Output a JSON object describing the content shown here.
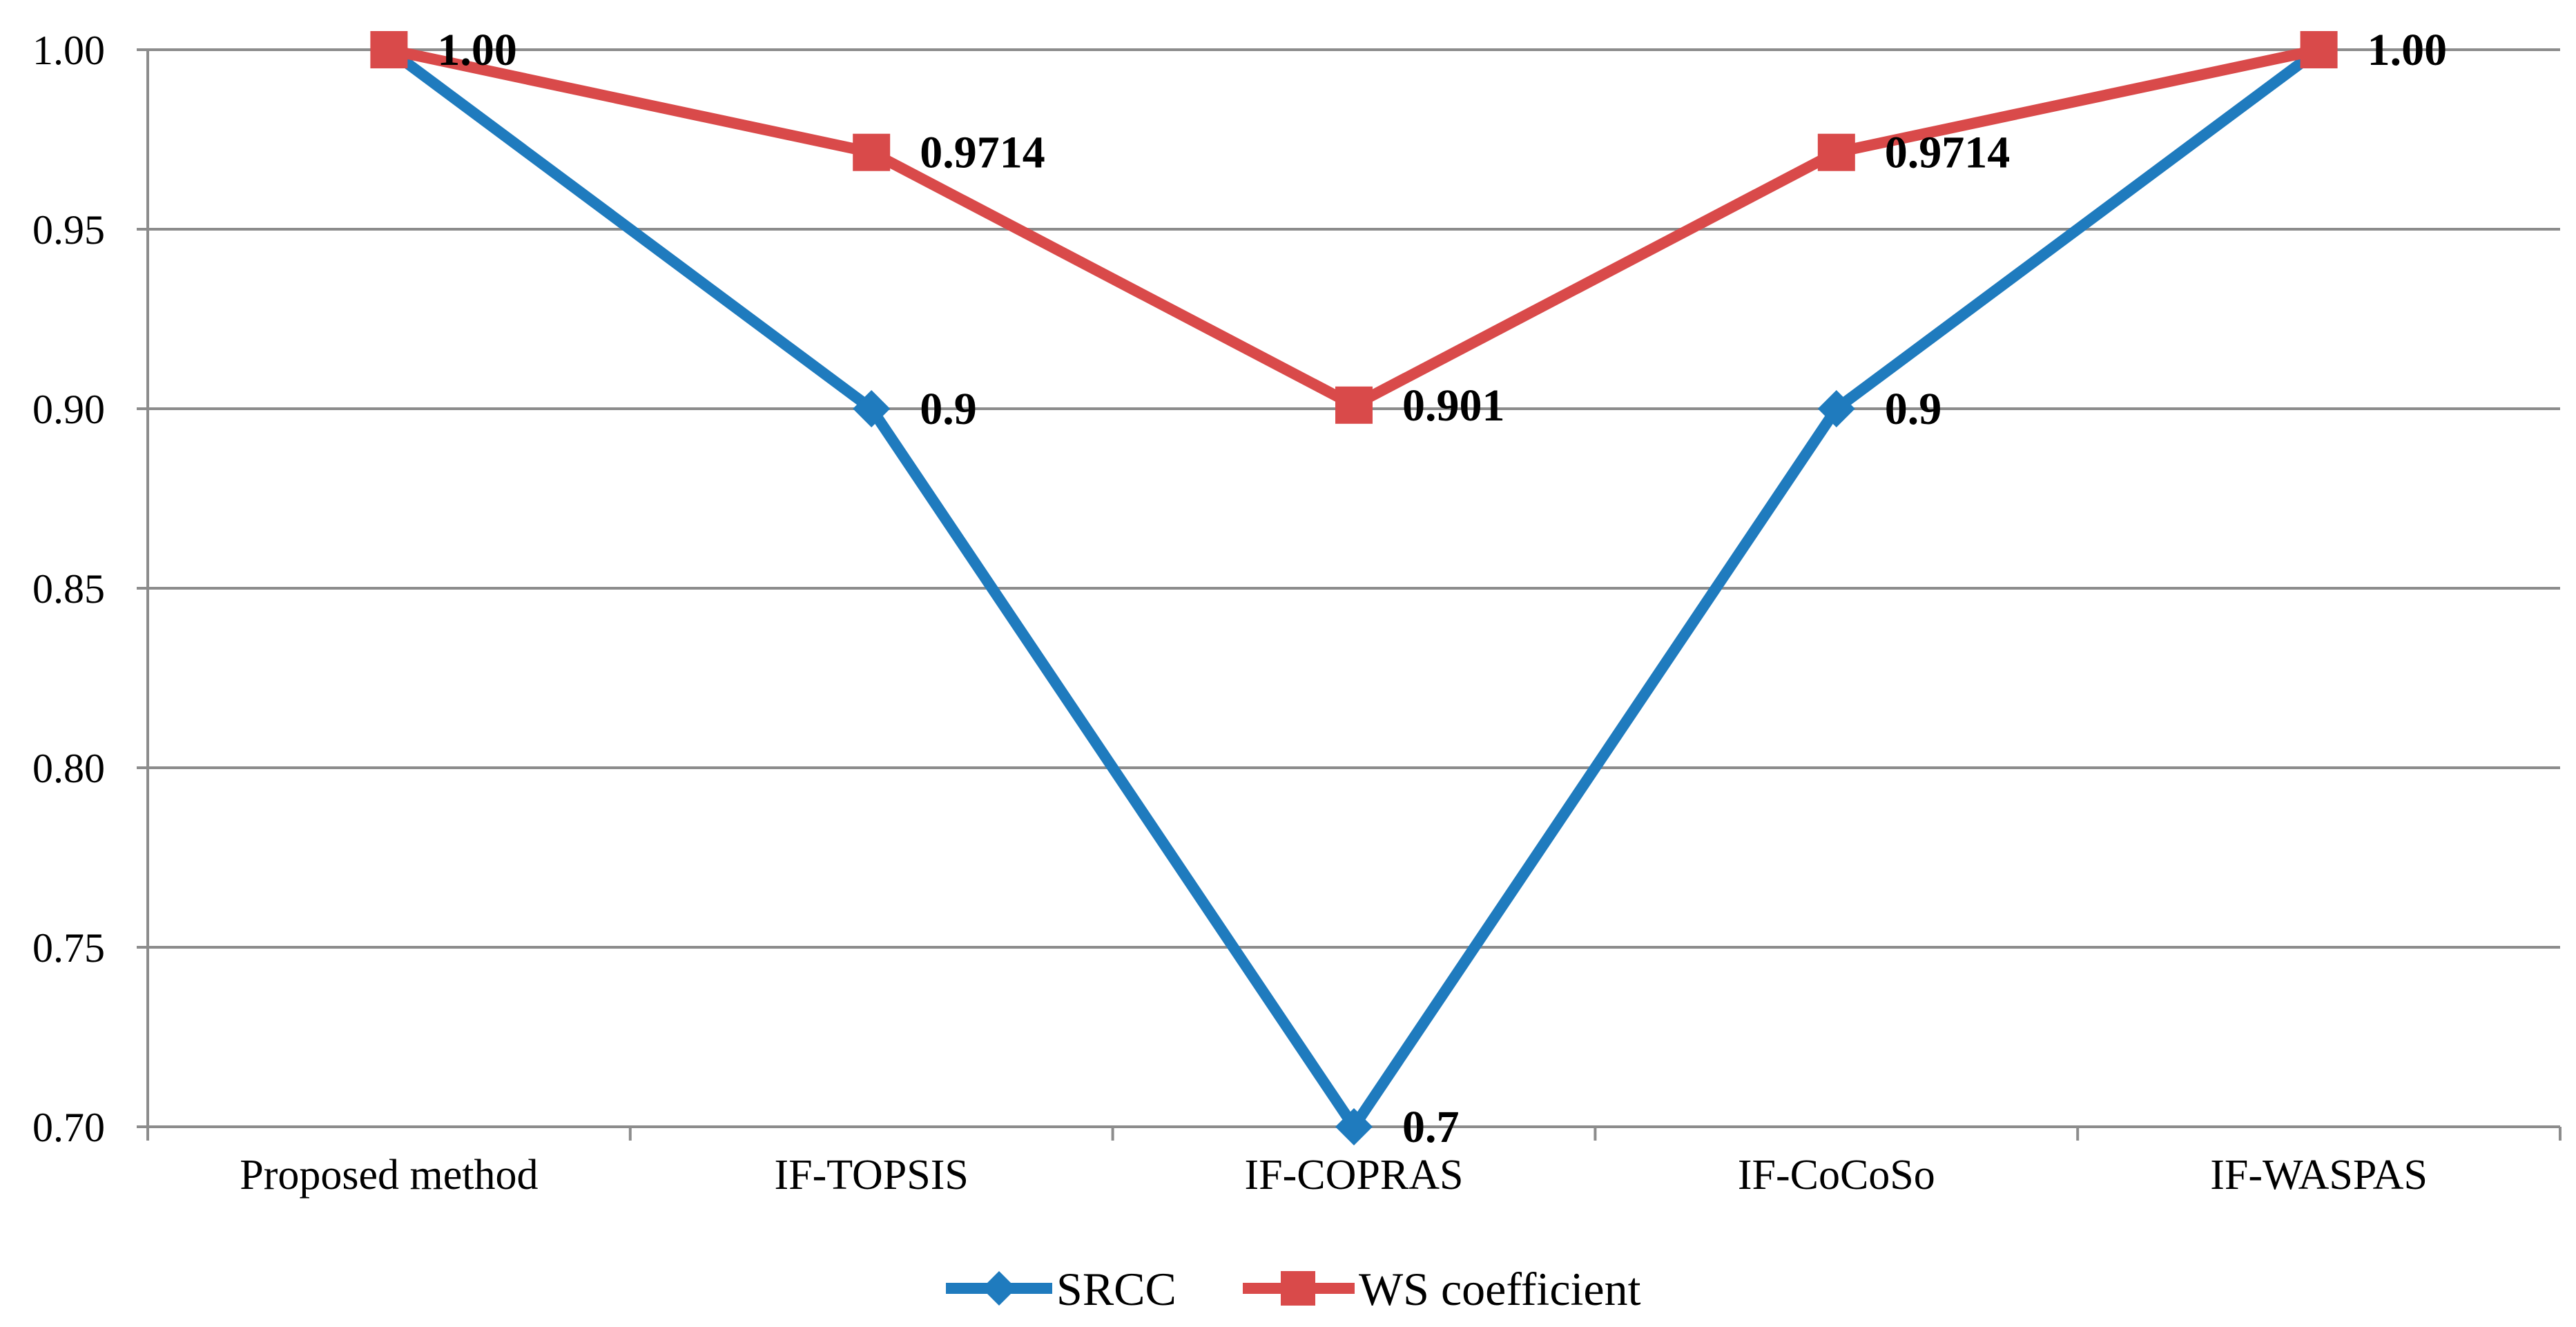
{
  "chart_data": {
    "type": "line",
    "categories": [
      "Proposed method",
      "IF-TOPSIS",
      "IF-COPRAS",
      "IF-CoCoSo",
      "IF-WASPAS"
    ],
    "series": [
      {
        "name": "SRCC",
        "values": [
          1.0,
          0.9,
          0.7,
          0.9,
          1.0
        ],
        "labels": [
          "",
          "0.9",
          "0.7",
          "0.9",
          ""
        ],
        "color": "#1F7BBE",
        "marker": "diamond"
      },
      {
        "name": "WS coefficient",
        "values": [
          1.0,
          0.9714,
          0.901,
          0.9714,
          1.0
        ],
        "labels": [
          "1.00",
          "0.9714",
          "0.901",
          "0.9714",
          "1.00"
        ],
        "color": "#D94A4A",
        "marker": "square"
      }
    ],
    "ylim": [
      0.7,
      1.0
    ],
    "yticks": [
      "1.00",
      "0.95",
      "0.90",
      "0.85",
      "0.80",
      "0.75",
      "0.70"
    ],
    "title": "",
    "xlabel": "",
    "ylabel": "",
    "grid": true,
    "legend_position": "bottom"
  }
}
